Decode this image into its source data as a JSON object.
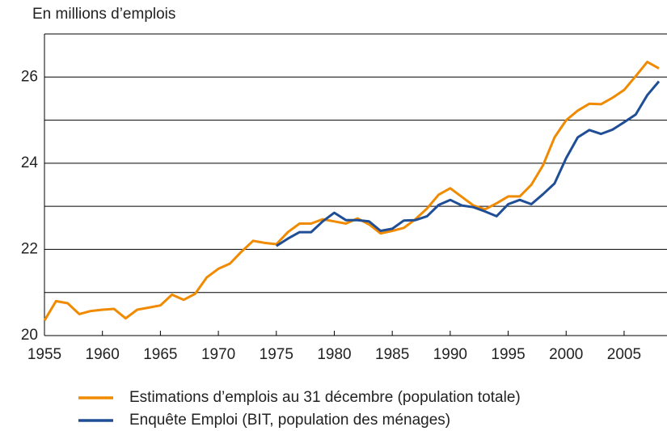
{
  "chart_data": {
    "type": "line",
    "y_axis_label": "En millions d’emplois",
    "x": [
      1955,
      1956,
      1957,
      1958,
      1959,
      1960,
      1961,
      1962,
      1963,
      1964,
      1965,
      1966,
      1967,
      1968,
      1969,
      1970,
      1971,
      1972,
      1973,
      1974,
      1975,
      1976,
      1977,
      1978,
      1979,
      1980,
      1981,
      1982,
      1983,
      1984,
      1985,
      1986,
      1987,
      1988,
      1989,
      1990,
      1991,
      1992,
      1993,
      1994,
      1995,
      1996,
      1997,
      1998,
      1999,
      2000,
      2001,
      2002,
      2003,
      2004,
      2005,
      2006,
      2007,
      2008
    ],
    "series": [
      {
        "name": "Estimations d’emplois au 31 décembre (population totale)",
        "color": "#f08a00",
        "values": [
          20.35,
          20.8,
          20.75,
          20.5,
          20.57,
          20.6,
          20.62,
          20.4,
          20.6,
          20.65,
          20.7,
          20.95,
          20.83,
          20.97,
          21.35,
          21.55,
          21.67,
          21.95,
          22.2,
          22.15,
          22.12,
          22.4,
          22.6,
          22.6,
          22.7,
          22.65,
          22.6,
          22.72,
          22.58,
          22.37,
          22.43,
          22.5,
          22.7,
          22.95,
          23.27,
          23.42,
          23.22,
          23.02,
          22.93,
          23.07,
          23.23,
          23.23,
          23.5,
          23.95,
          24.6,
          25.0,
          25.22,
          25.38,
          25.37,
          25.52,
          25.7,
          26.02,
          26.35,
          26.2
        ]
      },
      {
        "name": "Enquête Emploi (BIT, population des ménages)",
        "color": "#1f4e96",
        "values": [
          null,
          null,
          null,
          null,
          null,
          null,
          null,
          null,
          null,
          null,
          null,
          null,
          null,
          null,
          null,
          null,
          null,
          null,
          null,
          null,
          22.08,
          22.25,
          22.4,
          22.4,
          22.65,
          22.85,
          22.68,
          22.68,
          22.65,
          22.43,
          22.48,
          22.67,
          22.68,
          22.77,
          23.03,
          23.15,
          23.02,
          22.98,
          22.88,
          22.77,
          23.05,
          23.15,
          23.05,
          23.28,
          23.53,
          24.12,
          24.6,
          24.77,
          24.68,
          24.78,
          24.95,
          25.13,
          25.58,
          25.9
        ]
      }
    ],
    "xlim": [
      1955,
      2008.7
    ],
    "xticks": [
      1955,
      1960,
      1965,
      1970,
      1975,
      1980,
      1985,
      1990,
      1995,
      2000,
      2005
    ],
    "ylim": [
      20,
      27
    ],
    "yticks": [
      20,
      22,
      24,
      26
    ],
    "y_minor_gridlines": [
      21,
      23,
      25,
      27
    ],
    "grid": true
  }
}
